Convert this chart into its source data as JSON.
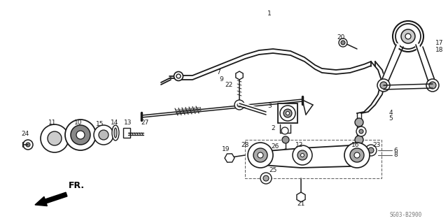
{
  "bg_color": "#ffffff",
  "line_color": "#1a1a1a",
  "fig_width": 6.4,
  "fig_height": 3.19,
  "dpi": 100,
  "watermark": "SG03-B2900",
  "fr_label": "FR."
}
